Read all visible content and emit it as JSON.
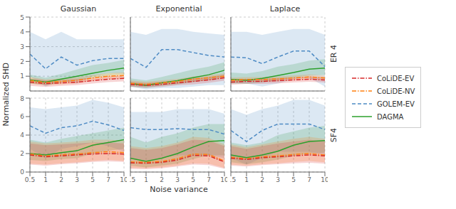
{
  "chart_data": [
    {
      "type": "line",
      "title": "Gaussian",
      "ylabel": "Normalized SHD",
      "legend": "right",
      "tick_labels": "y",
      "categories": [
        "0.5",
        "1",
        "2",
        "3",
        "5",
        "7",
        "10"
      ],
      "ylim": [
        0,
        5
      ],
      "yticks": [
        0,
        1,
        2,
        3,
        4,
        5
      ],
      "grid": true,
      "series": [
        {
          "name": "CoLiDE-EV",
          "color": "#d62728",
          "line_style": "dashdot",
          "values": [
            0.6,
            0.5,
            0.55,
            0.6,
            0.7,
            0.8,
            0.85
          ],
          "lo": [
            0.35,
            0.28,
            0.35,
            0.4,
            0.5,
            0.6,
            0.65
          ],
          "hi": [
            0.85,
            0.72,
            0.75,
            0.8,
            0.9,
            1.0,
            1.05
          ]
        },
        {
          "name": "CoLiDE-NV",
          "color": "#ff7f0e",
          "line_style": "dashdot",
          "values": [
            0.7,
            0.58,
            0.65,
            0.72,
            0.88,
            1.0,
            1.05
          ],
          "lo": [
            0.5,
            0.38,
            0.45,
            0.52,
            0.68,
            0.8,
            0.85
          ],
          "hi": [
            0.95,
            0.78,
            0.85,
            0.92,
            1.08,
            1.2,
            1.25
          ]
        },
        {
          "name": "GOLEM-EV",
          "color": "#4e8bc4",
          "line_style": "dashed",
          "values": [
            2.5,
            1.5,
            2.3,
            1.75,
            2.05,
            2.2,
            2.2
          ],
          "lo": [
            1.0,
            0.3,
            0.7,
            0.5,
            1.0,
            1.2,
            1.2
          ],
          "hi": [
            4.0,
            3.5,
            4.0,
            3.5,
            3.5,
            3.5,
            3.5
          ]
        },
        {
          "name": "DAGMA",
          "color": "#2ca02c",
          "line_style": "solid",
          "values": [
            0.75,
            0.6,
            0.8,
            1.0,
            1.2,
            1.4,
            1.55
          ],
          "lo": [
            0.5,
            0.4,
            0.55,
            0.72,
            0.9,
            1.05,
            1.1
          ],
          "hi": [
            1.1,
            0.9,
            1.15,
            1.45,
            1.75,
            1.9,
            2.1
          ]
        }
      ]
    },
    {
      "type": "line",
      "title": "Exponential",
      "tick_labels": false,
      "categories": [
        "0.5",
        "1",
        "2",
        "3",
        "5",
        "7",
        "10"
      ],
      "ylim": [
        0,
        5
      ],
      "yticks": [
        0,
        1,
        2,
        3,
        4,
        5
      ],
      "grid": true,
      "series": [
        {
          "name": "CoLiDE-EV",
          "color": "#d62728",
          "line_style": "dashdot",
          "values": [
            0.45,
            0.38,
            0.45,
            0.55,
            0.65,
            0.75,
            0.9
          ],
          "lo": [
            0.28,
            0.22,
            0.28,
            0.38,
            0.45,
            0.55,
            0.7
          ],
          "hi": [
            0.62,
            0.54,
            0.62,
            0.72,
            0.85,
            0.95,
            1.1
          ]
        },
        {
          "name": "CoLiDE-NV",
          "color": "#ff7f0e",
          "line_style": "dashdot",
          "values": [
            0.52,
            0.45,
            0.55,
            0.65,
            0.8,
            0.9,
            1.0
          ],
          "lo": [
            0.35,
            0.3,
            0.38,
            0.48,
            0.62,
            0.72,
            0.82
          ],
          "hi": [
            0.72,
            0.62,
            0.72,
            0.82,
            0.98,
            1.08,
            1.18
          ]
        },
        {
          "name": "GOLEM-EV",
          "color": "#4e8bc4",
          "line_style": "dashed",
          "values": [
            2.2,
            1.6,
            2.8,
            2.8,
            2.6,
            2.4,
            2.3
          ],
          "lo": [
            0.3,
            0.1,
            0.2,
            0.2,
            0.3,
            0.4,
            0.4
          ],
          "hi": [
            4.0,
            3.8,
            4.2,
            4.2,
            4.0,
            3.9,
            3.8
          ]
        },
        {
          "name": "DAGMA",
          "color": "#2ca02c",
          "line_style": "solid",
          "values": [
            0.5,
            0.38,
            0.55,
            0.7,
            0.9,
            1.1,
            1.4
          ],
          "lo": [
            0.3,
            0.2,
            0.35,
            0.45,
            0.6,
            0.75,
            0.95
          ],
          "hi": [
            0.85,
            0.72,
            0.95,
            1.2,
            1.45,
            1.65,
            1.95
          ]
        }
      ]
    },
    {
      "type": "line",
      "title": "Laplace",
      "annotations": [
        "ER 4"
      ],
      "tick_labels": false,
      "categories": [
        "0.5",
        "1",
        "2",
        "3",
        "5",
        "7",
        "10"
      ],
      "ylim": [
        0,
        5
      ],
      "yticks": [
        0,
        1,
        2,
        3,
        4,
        5
      ],
      "grid": true,
      "series": [
        {
          "name": "CoLiDE-EV",
          "color": "#d62728",
          "line_style": "dashdot",
          "values": [
            0.6,
            0.65,
            0.65,
            0.7,
            0.75,
            0.8,
            0.75
          ],
          "lo": [
            0.42,
            0.48,
            0.48,
            0.52,
            0.58,
            0.62,
            0.58
          ],
          "hi": [
            0.78,
            0.82,
            0.82,
            0.88,
            0.92,
            0.98,
            0.92
          ]
        },
        {
          "name": "CoLiDE-NV",
          "color": "#ff7f0e",
          "line_style": "dashdot",
          "values": [
            0.72,
            0.78,
            0.78,
            0.82,
            0.88,
            0.95,
            0.88
          ],
          "lo": [
            0.55,
            0.62,
            0.62,
            0.65,
            0.72,
            0.78,
            0.72
          ],
          "hi": [
            0.9,
            0.94,
            0.94,
            0.99,
            1.04,
            1.12,
            1.04
          ]
        },
        {
          "name": "GOLEM-EV",
          "color": "#4e8bc4",
          "line_style": "dashed",
          "values": [
            2.3,
            2.25,
            1.85,
            2.3,
            2.7,
            2.7,
            1.65
          ],
          "lo": [
            0.5,
            0.5,
            0.3,
            0.5,
            0.8,
            0.9,
            0.3
          ],
          "hi": [
            4.0,
            4.0,
            3.8,
            4.0,
            4.2,
            4.2,
            3.8
          ]
        },
        {
          "name": "DAGMA",
          "color": "#2ca02c",
          "line_style": "solid",
          "values": [
            0.78,
            0.72,
            0.85,
            1.05,
            1.25,
            1.48,
            1.55
          ],
          "lo": [
            0.52,
            0.48,
            0.58,
            0.72,
            0.9,
            1.05,
            1.08
          ],
          "hi": [
            1.25,
            1.18,
            1.35,
            1.65,
            1.82,
            2.05,
            2.15
          ]
        }
      ]
    },
    {
      "type": "line",
      "categories": [
        "0.5",
        "1",
        "2",
        "3",
        "5",
        "7",
        "10"
      ],
      "ylim": [
        0,
        8
      ],
      "yticks": [
        0,
        2,
        4,
        6,
        8
      ],
      "grid": true,
      "series": [
        {
          "name": "CoLiDE-EV",
          "color": "#d62728",
          "line_style": "dashdot",
          "values": [
            1.85,
            1.65,
            1.75,
            1.85,
            1.95,
            2.0,
            1.95
          ],
          "lo": [
            0.8,
            0.7,
            0.85,
            0.95,
            1.1,
            1.15,
            1.1
          ],
          "hi": [
            3.1,
            2.9,
            3.0,
            3.1,
            3.2,
            3.2,
            3.1
          ]
        },
        {
          "name": "CoLiDE-NV",
          "color": "#ff7f0e",
          "line_style": "dashdot",
          "values": [
            1.95,
            1.75,
            1.85,
            1.95,
            2.1,
            2.2,
            2.1
          ],
          "lo": [
            0.9,
            0.8,
            0.95,
            1.05,
            1.2,
            1.3,
            1.2
          ],
          "hi": [
            3.3,
            3.1,
            3.2,
            3.3,
            3.5,
            3.5,
            3.4
          ]
        },
        {
          "name": "GOLEM-EV",
          "color": "#4e8bc4",
          "line_style": "dashed",
          "values": [
            5.0,
            4.2,
            4.8,
            5.0,
            5.5,
            5.1,
            4.5
          ],
          "lo": [
            2.5,
            1.5,
            2.5,
            2.8,
            3.2,
            2.8,
            2.2
          ],
          "hi": [
            7.0,
            6.8,
            7.0,
            7.2,
            7.8,
            7.5,
            7.0
          ]
        },
        {
          "name": "DAGMA",
          "color": "#2ca02c",
          "line_style": "solid",
          "values": [
            2.0,
            1.85,
            2.1,
            2.3,
            2.9,
            3.2,
            3.5
          ],
          "lo": [
            1.3,
            1.2,
            1.4,
            1.5,
            2.0,
            2.3,
            2.5
          ],
          "hi": [
            3.5,
            3.2,
            3.6,
            3.9,
            4.2,
            4.5,
            4.8
          ]
        }
      ]
    },
    {
      "type": "line",
      "xlabel": "Noise variance",
      "tick_labels": "x",
      "categories": [
        "0.5",
        "1",
        "2",
        "3",
        "5",
        "7",
        "10"
      ],
      "ylim": [
        0,
        8
      ],
      "yticks": [
        0,
        2,
        4,
        6,
        8
      ],
      "grid": true,
      "series": [
        {
          "name": "CoLiDE-EV",
          "color": "#d62728",
          "line_style": "dashdot",
          "values": [
            1.0,
            0.95,
            1.05,
            1.3,
            1.8,
            1.75,
            1.1
          ],
          "lo": [
            0.35,
            0.3,
            0.4,
            0.6,
            0.8,
            0.75,
            0.35
          ],
          "hi": [
            2.6,
            2.4,
            2.6,
            3.0,
            3.5,
            3.4,
            2.8
          ]
        },
        {
          "name": "CoLiDE-NV",
          "color": "#ff7f0e",
          "line_style": "dashdot",
          "values": [
            1.1,
            1.05,
            1.15,
            1.45,
            1.95,
            1.9,
            1.2
          ],
          "lo": [
            0.45,
            0.4,
            0.5,
            0.7,
            0.95,
            0.9,
            0.45
          ],
          "hi": [
            2.8,
            2.6,
            2.8,
            3.2,
            3.8,
            3.7,
            3.0
          ]
        },
        {
          "name": "GOLEM-EV",
          "color": "#4e8bc4",
          "line_style": "dashed",
          "values": [
            4.8,
            4.6,
            4.6,
            4.7,
            4.6,
            4.6,
            4.1
          ],
          "lo": [
            1.5,
            1.2,
            1.5,
            1.8,
            1.8,
            1.8,
            1.5
          ],
          "hi": [
            6.5,
            6.5,
            6.5,
            6.8,
            6.8,
            6.8,
            6.3
          ]
        },
        {
          "name": "DAGMA",
          "color": "#2ca02c",
          "line_style": "solid",
          "values": [
            1.5,
            1.15,
            1.5,
            2.0,
            2.7,
            3.3,
            3.4
          ],
          "lo": [
            0.7,
            0.5,
            0.7,
            0.9,
            1.4,
            1.8,
            1.8
          ],
          "hi": [
            3.8,
            3.2,
            3.8,
            4.2,
            4.8,
            5.2,
            5.2
          ]
        }
      ]
    },
    {
      "type": "line",
      "annotations": [
        "SF4"
      ],
      "tick_labels": "x",
      "categories": [
        "0.5",
        "1",
        "2",
        "3",
        "5",
        "7",
        "10"
      ],
      "ylim": [
        0,
        8
      ],
      "yticks": [
        0,
        2,
        4,
        6,
        8
      ],
      "grid": true,
      "series": [
        {
          "name": "CoLiDE-EV",
          "color": "#d62728",
          "line_style": "dashdot",
          "values": [
            1.5,
            1.35,
            1.55,
            1.65,
            1.75,
            1.85,
            1.75
          ],
          "lo": [
            0.7,
            0.6,
            0.75,
            0.85,
            0.95,
            1.0,
            0.9
          ],
          "hi": [
            2.8,
            2.5,
            2.8,
            3.1,
            3.3,
            3.5,
            3.3
          ]
        },
        {
          "name": "CoLiDE-NV",
          "color": "#ff7f0e",
          "line_style": "dashdot",
          "values": [
            1.6,
            1.45,
            1.65,
            1.75,
            1.9,
            2.0,
            1.85
          ],
          "lo": [
            0.8,
            0.7,
            0.85,
            0.95,
            1.1,
            1.2,
            1.05
          ],
          "hi": [
            3.0,
            2.7,
            3.0,
            3.3,
            3.6,
            3.8,
            3.6
          ]
        },
        {
          "name": "GOLEM-EV",
          "color": "#4e8bc4",
          "line_style": "dashed",
          "values": [
            4.5,
            3.3,
            4.5,
            5.2,
            5.2,
            5.2,
            4.6
          ],
          "lo": [
            1.5,
            0.8,
            1.5,
            2.2,
            2.2,
            2.2,
            1.8
          ],
          "hi": [
            6.8,
            6.2,
            6.8,
            7.2,
            7.8,
            7.8,
            7.2
          ]
        },
        {
          "name": "DAGMA",
          "color": "#2ca02c",
          "line_style": "solid",
          "values": [
            1.85,
            1.55,
            1.85,
            2.25,
            2.9,
            3.3,
            3.4
          ],
          "lo": [
            1.05,
            0.85,
            1.05,
            1.35,
            1.75,
            2.0,
            2.1
          ],
          "hi": [
            3.2,
            2.9,
            3.2,
            4.0,
            4.4,
            4.8,
            5.0
          ]
        }
      ]
    }
  ]
}
